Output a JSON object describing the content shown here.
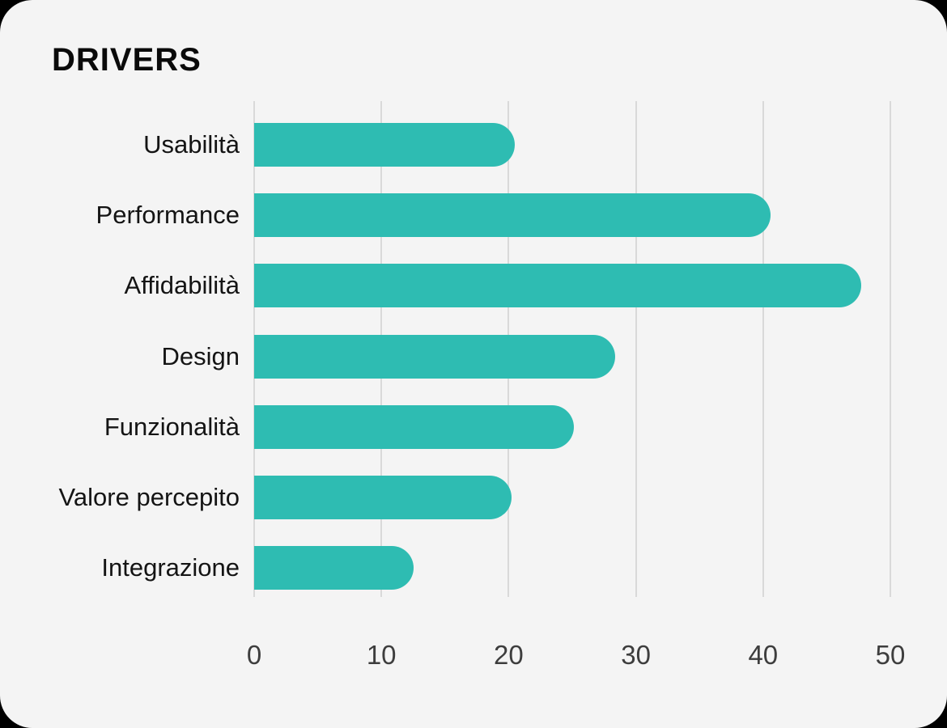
{
  "page": {
    "background": "#000000"
  },
  "card": {
    "background": "#f4f4f4"
  },
  "chart_data": {
    "type": "bar",
    "orientation": "horizontal",
    "title": "DRIVERS",
    "categories": [
      "Usabilità",
      "Performance",
      "Affidabilità",
      "Design",
      "Funzionalità",
      "Valore percepito",
      "Integrazione"
    ],
    "values": [
      20.5,
      40.6,
      47.7,
      28.4,
      25.1,
      20.2,
      12.5
    ],
    "xlabel": "",
    "ylabel": "",
    "xlim": [
      0,
      50
    ],
    "ticks": [
      0,
      10,
      20,
      30,
      40,
      50
    ],
    "tick_labels": [
      "0",
      "10",
      "20",
      "30",
      "40",
      "50"
    ],
    "bar_color": "#2ebcb2",
    "gridline_color": "#d9d9d9",
    "title_color": "#0a0a0a",
    "label_color": "#141414",
    "tick_color": "#3d3d3d",
    "grid": true,
    "legend": false
  }
}
